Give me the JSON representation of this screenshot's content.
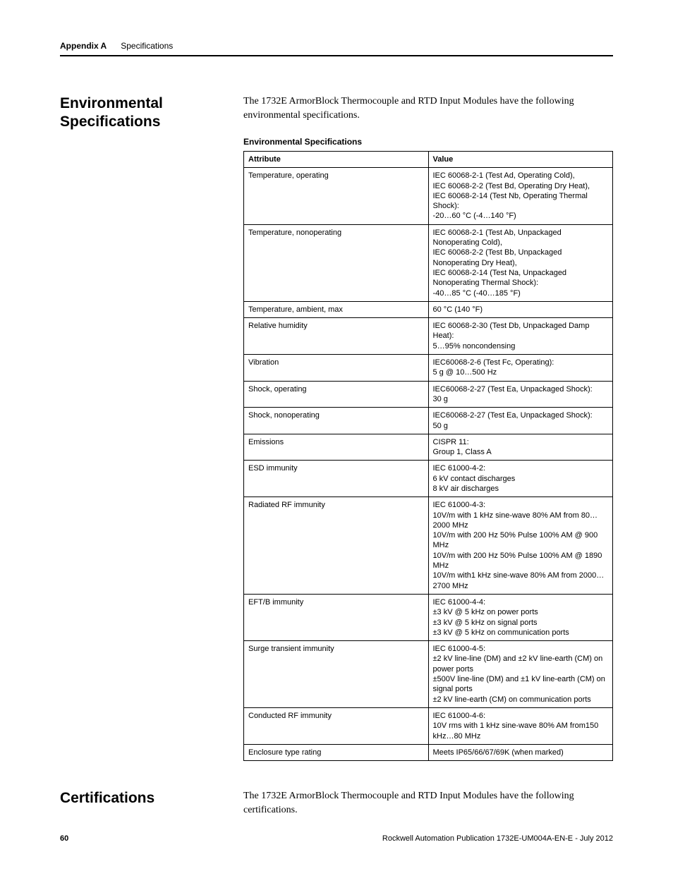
{
  "header": {
    "appendix": "Appendix A",
    "title": "Specifications"
  },
  "sections": {
    "env": {
      "heading": "Environmental Specifications",
      "intro": "The 1732E ArmorBlock Thermocouple and RTD Input Modules have the following environmental specifications.",
      "table_caption": "Environmental Specifications",
      "columns": [
        "Attribute",
        "Value"
      ],
      "rows": [
        {
          "attr": "Temperature, operating",
          "val": "IEC 60068-2-1 (Test Ad, Operating Cold),\nIEC 60068-2-2 (Test Bd, Operating Dry Heat),\nIEC 60068-2-14 (Test Nb, Operating Thermal Shock):\n-20…60 °C (-4…140 °F)"
        },
        {
          "attr": "Temperature, nonoperating",
          "val": "IEC 60068-2-1 (Test Ab, Unpackaged Nonoperating Cold),\nIEC 60068-2-2 (Test Bb, Unpackaged Nonoperating Dry Heat),\nIEC 60068-2-14 (Test Na, Unpackaged Nonoperating Thermal Shock):\n-40…85 °C (-40…185 °F)"
        },
        {
          "attr": "Temperature, ambient, max",
          "val": "60 °C (140 °F)"
        },
        {
          "attr": "Relative humidity",
          "val": "IEC 60068-2-30 (Test Db, Unpackaged Damp Heat):\n5…95% noncondensing"
        },
        {
          "attr": "Vibration",
          "val": "IEC60068-2-6 (Test Fc, Operating):\n5 g @ 10…500 Hz"
        },
        {
          "attr": "Shock, operating",
          "val": "IEC60068-2-27 (Test Ea, Unpackaged Shock):\n30 g"
        },
        {
          "attr": "Shock, nonoperating",
          "val": "IEC60068-2-27 (Test Ea, Unpackaged Shock):\n50 g"
        },
        {
          "attr": "Emissions",
          "val": "CISPR 11:\nGroup 1, Class A"
        },
        {
          "attr": "ESD immunity",
          "val": "IEC 61000-4-2:\n6 kV contact discharges\n8 kV air discharges"
        },
        {
          "attr": "Radiated RF immunity",
          "val": "IEC 61000-4-3:\n10V/m with 1 kHz sine-wave 80% AM from 80…2000 MHz\n10V/m with 200 Hz 50% Pulse 100% AM @ 900 MHz\n10V/m with 200 Hz 50% Pulse 100% AM @ 1890 MHz\n10V/m with1 kHz sine-wave 80% AM from 2000…2700 MHz"
        },
        {
          "attr": "EFT/B immunity",
          "val": "IEC 61000-4-4:\n±3 kV @ 5 kHz on power ports\n±3 kV @ 5 kHz on signal ports\n±3 kV @ 5 kHz on communication ports"
        },
        {
          "attr": "Surge transient immunity",
          "val": "IEC 61000-4-5:\n±2 kV line-line (DM) and ±2 kV line-earth (CM) on power ports\n±500V line-line (DM) and ±1 kV line-earth (CM) on signal ports\n±2 kV line-earth (CM) on communication ports"
        },
        {
          "attr": "Conducted RF immunity",
          "val": "IEC 61000-4-6:\n10V rms with 1 kHz sine-wave 80% AM from150 kHz…80 MHz"
        },
        {
          "attr": "Enclosure type rating",
          "val": "Meets IP65/66/67/69K (when marked)"
        }
      ]
    },
    "cert": {
      "heading": "Certifications",
      "intro": "The 1732E ArmorBlock Thermocouple and RTD Input Modules have the following certifications."
    }
  },
  "footer": {
    "page": "60",
    "pub": "Rockwell Automation Publication 1732E-UM004A-EN-E - July 2012"
  }
}
